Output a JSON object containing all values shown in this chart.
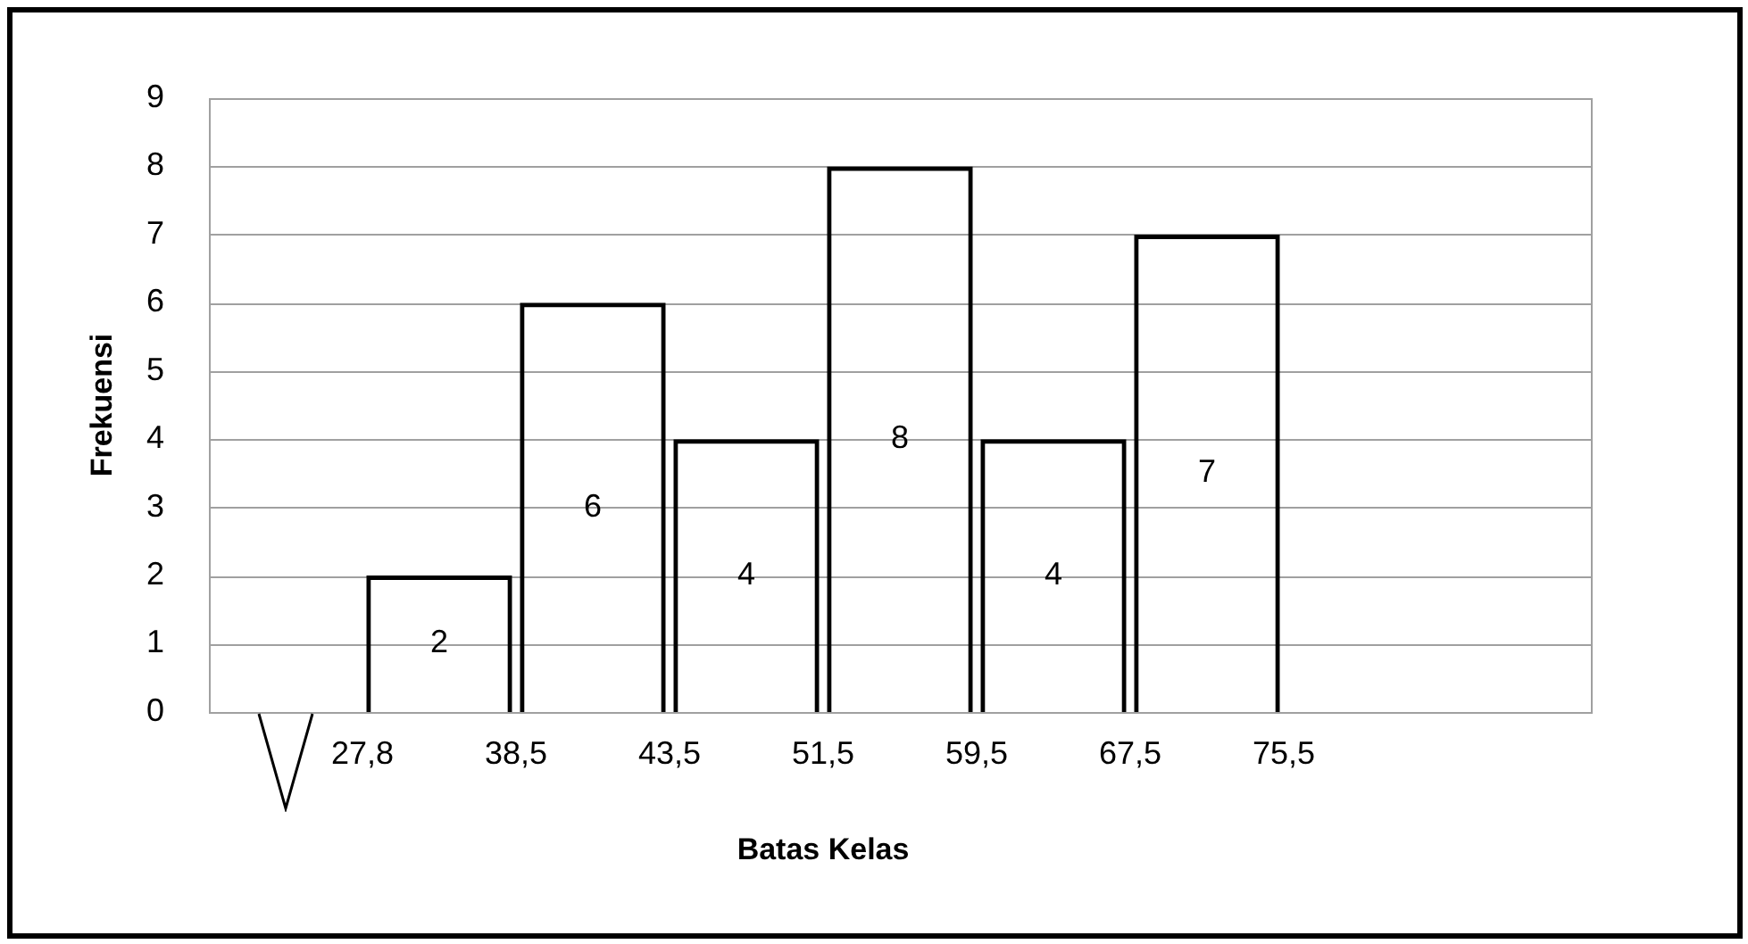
{
  "chart_data": {
    "type": "bar",
    "xlabel": "Batas Kelas",
    "ylabel": "Frekuensi",
    "categories": [
      null,
      null,
      null,
      null,
      null,
      null
    ],
    "values": [
      2,
      6,
      4,
      8,
      4,
      7
    ],
    "color": "#000000",
    "ylim": [
      0,
      9
    ],
    "yticks": [
      0,
      1,
      2,
      3,
      4,
      5,
      6,
      7,
      8,
      9
    ],
    "annotations": [
      "27,8",
      "38,5",
      "43,5",
      "51,5",
      "59,5",
      "67,5",
      "75,5"
    ],
    "grid": "y",
    "data_labels": true
  }
}
